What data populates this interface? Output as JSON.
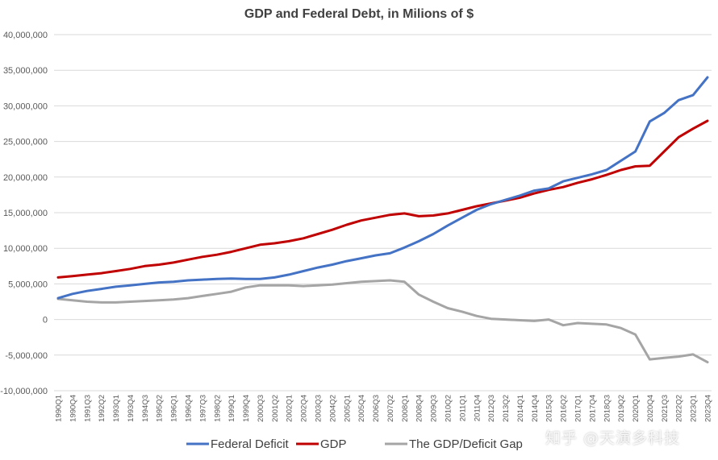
{
  "chart_data": {
    "type": "line",
    "title": "GDP and Federal Debt, in Milions of $",
    "ylim": [
      -10000000,
      40000000
    ],
    "y_ticks": [
      {
        "value": 40000000,
        "label": "40,000,000"
      },
      {
        "value": 35000000,
        "label": "35,000,000"
      },
      {
        "value": 30000000,
        "label": "30,000,000"
      },
      {
        "value": 25000000,
        "label": "25,000,000"
      },
      {
        "value": 20000000,
        "label": "20,000,000"
      },
      {
        "value": 15000000,
        "label": "15,000,000"
      },
      {
        "value": 10000000,
        "label": "10,000,000"
      },
      {
        "value": 5000000,
        "label": "5,000,000"
      },
      {
        "value": 0,
        "label": "0"
      },
      {
        "value": -5000000,
        "label": "-5,000,000"
      },
      {
        "value": -10000000,
        "label": "-10,000,000"
      }
    ],
    "grid": true,
    "legend": "bottom",
    "x_labels": [
      "1990Q1",
      "1990Q4",
      "1991Q3",
      "1992Q2",
      "1993Q1",
      "1993Q4",
      "1994Q3",
      "1995Q2",
      "1996Q1",
      "1996Q4",
      "1997Q3",
      "1998Q2",
      "1999Q1",
      "1999Q4",
      "2000Q3",
      "2001Q2",
      "2002Q1",
      "2002Q4",
      "2003Q3",
      "2004Q2",
      "2005Q1",
      "2005Q4",
      "2006Q3",
      "2007Q2",
      "2008Q1",
      "2008Q4",
      "2009Q3",
      "2010Q2",
      "2011Q1",
      "2011Q4",
      "2012Q3",
      "2013Q2",
      "2014Q1",
      "2014Q4",
      "2015Q3",
      "2016Q2",
      "2017Q1",
      "2017Q4",
      "2018Q3",
      "2019Q2",
      "2020Q1",
      "2020Q4",
      "2021Q3",
      "2022Q2",
      "2023Q1",
      "2023Q4"
    ],
    "series": [
      {
        "name": "Federal Deficit",
        "color": "#4472C4",
        "values": [
          3000000,
          3600000,
          4000000,
          4300000,
          4600000,
          4800000,
          5000000,
          5200000,
          5300000,
          5500000,
          5600000,
          5700000,
          5750000,
          5700000,
          5700000,
          5900000,
          6300000,
          6800000,
          7300000,
          7700000,
          8200000,
          8600000,
          9000000,
          9300000,
          10100000,
          11000000,
          12000000,
          13200000,
          14300000,
          15400000,
          16200000,
          16800000,
          17400000,
          18100000,
          18400000,
          19400000,
          19900000,
          20400000,
          21000000,
          22300000,
          23600000,
          27800000,
          29000000,
          30800000,
          31500000,
          34000000
        ]
      },
      {
        "name": "GDP",
        "color": "#C00000",
        "values": [
          5900000,
          6100000,
          6300000,
          6500000,
          6800000,
          7100000,
          7500000,
          7700000,
          8000000,
          8400000,
          8800000,
          9100000,
          9500000,
          10000000,
          10500000,
          10700000,
          11000000,
          11400000,
          12000000,
          12600000,
          13300000,
          13900000,
          14300000,
          14700000,
          14900000,
          14500000,
          14600000,
          14900000,
          15400000,
          15900000,
          16300000,
          16700000,
          17100000,
          17700000,
          18200000,
          18600000,
          19200000,
          19700000,
          20300000,
          21000000,
          21500000,
          21600000,
          23600000,
          25600000,
          26800000,
          27900000
        ]
      },
      {
        "name": "The GDP/Deficit Gap",
        "color": "#A5A5A5",
        "values": [
          2900000,
          2700000,
          2500000,
          2400000,
          2400000,
          2500000,
          2600000,
          2700000,
          2800000,
          3000000,
          3300000,
          3600000,
          3900000,
          4500000,
          4800000,
          4800000,
          4800000,
          4700000,
          4800000,
          4900000,
          5100000,
          5300000,
          5400000,
          5500000,
          5300000,
          3500000,
          2500000,
          1600000,
          1100000,
          500000,
          100000,
          0,
          -100000,
          -200000,
          0,
          -800000,
          -500000,
          -600000,
          -700000,
          -1200000,
          -2100000,
          -5600000,
          -5400000,
          -5200000,
          -4900000,
          -6000000
        ]
      }
    ]
  },
  "watermark": "知乎 @天演多科技"
}
